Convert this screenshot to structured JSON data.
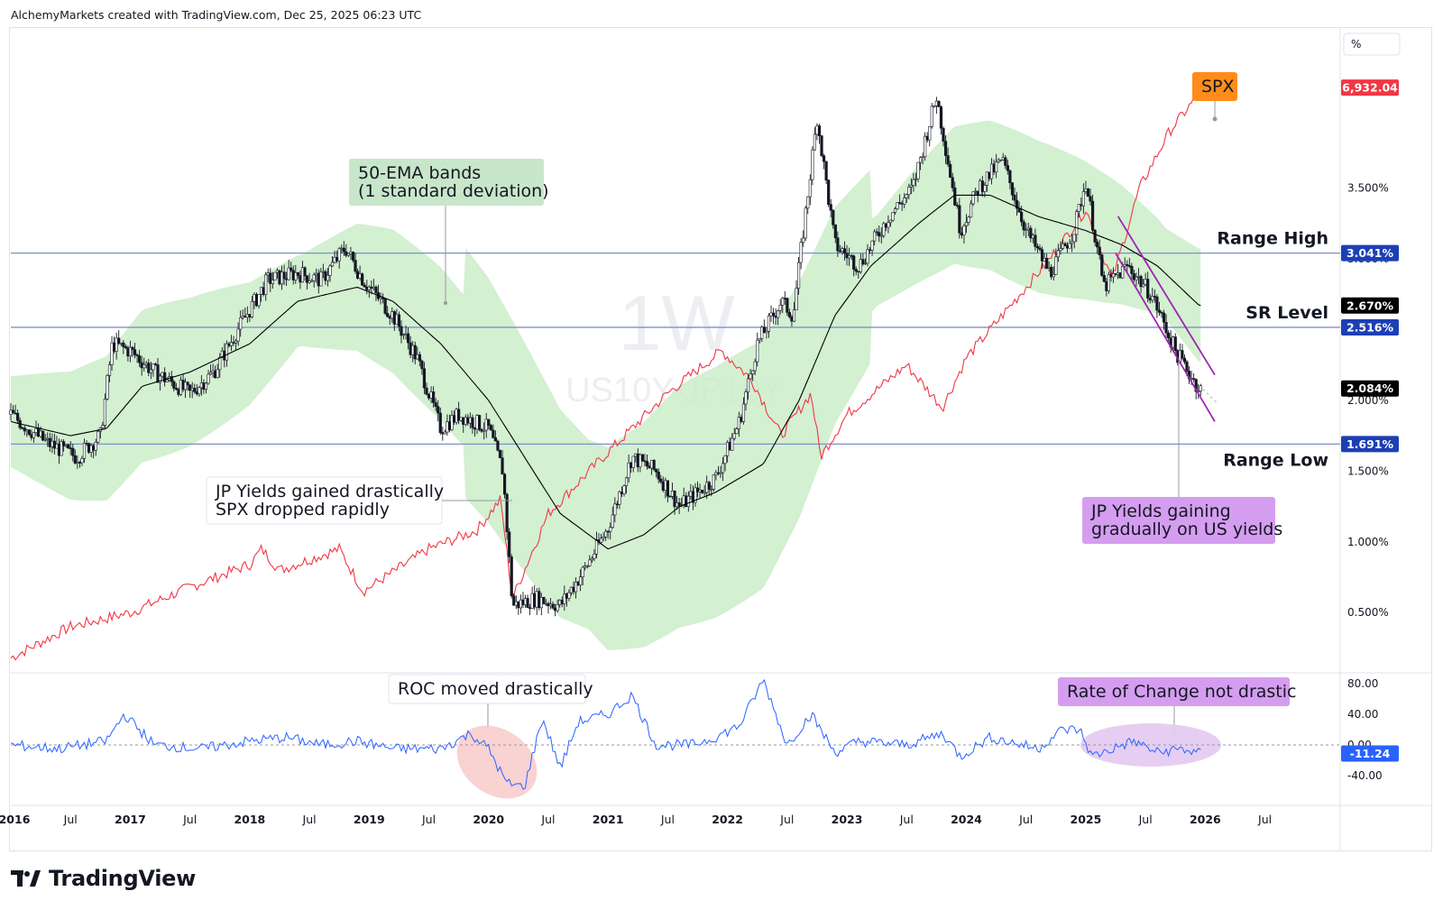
{
  "header": {
    "text": "AlchemyMarkets created with TradingView.com, Dec 25, 2025 06:23 UTC"
  },
  "brand": {
    "name": "TradingView"
  },
  "watermark": {
    "interval": "1W",
    "symbol": "US10Y-JP10Y"
  },
  "colors": {
    "up": "#131722",
    "down": "#131722",
    "ema": "#000000",
    "band": "#c8ecc6",
    "spx": "#f23645",
    "roc": "#2962ff",
    "channel": "#9c27b0",
    "hline": "#7e8fc8"
  },
  "chart_data": [
    {
      "type": "line",
      "title": "US10Y-JP10Y 1W with SPX overlay",
      "x_range": [
        "Jan 2016",
        "Feb 2027"
      ],
      "ylim": [
        0.1,
        4.6
      ],
      "y_unit": "%",
      "scale_badge": "%",
      "x_ticks": [
        "2016",
        "Jul",
        "2017",
        "Jul",
        "2018",
        "Jul",
        "2019",
        "Jul",
        "2020",
        "Jul",
        "2021",
        "Jul",
        "2022",
        "Jul",
        "2023",
        "Jul",
        "2024",
        "Jul",
        "2025",
        "Jul",
        "2026",
        "Jul"
      ],
      "y_ticks": [
        "3.500%",
        "3.000%",
        "2.500%",
        "2.000%",
        "1.500%",
        "1.000%",
        "0.500%"
      ],
      "levels": [
        {
          "name": "Range High",
          "value": 3.041,
          "badge": "3.041%"
        },
        {
          "name": "SR Level",
          "value": 2.516,
          "badge": "2.516%"
        },
        {
          "name": "Range Low",
          "value": 1.691,
          "badge": "1.691%"
        }
      ],
      "price_badges": [
        {
          "label": "6,932.04",
          "series": "SPX",
          "color": "#f23645"
        },
        {
          "label": "2.670%",
          "series": "50-EMA",
          "color": "#000000"
        },
        {
          "label": "2.084%",
          "series": "US10Y-JP10Y",
          "color": "#000000"
        }
      ],
      "series": [
        {
          "name": "US10Y-JP10Y",
          "kind": "candles",
          "anchors": [
            [
              2016.0,
              1.9
            ],
            [
              2016.3,
              1.7
            ],
            [
              2016.55,
              1.6
            ],
            [
              2016.75,
              1.75
            ],
            [
              2016.85,
              2.4
            ],
            [
              2017.0,
              2.35
            ],
            [
              2017.2,
              2.2
            ],
            [
              2017.5,
              2.05
            ],
            [
              2017.7,
              2.2
            ],
            [
              2017.9,
              2.5
            ],
            [
              2018.15,
              2.85
            ],
            [
              2018.4,
              2.9
            ],
            [
              2018.6,
              2.85
            ],
            [
              2018.8,
              3.08
            ],
            [
              2018.95,
              2.85
            ],
            [
              2019.2,
              2.6
            ],
            [
              2019.4,
              2.3
            ],
            [
              2019.6,
              1.8
            ],
            [
              2019.75,
              1.9
            ],
            [
              2020.0,
              1.8
            ],
            [
              2020.12,
              1.5
            ],
            [
              2020.2,
              0.55
            ],
            [
              2020.4,
              0.6
            ],
            [
              2020.6,
              0.55
            ],
            [
              2020.8,
              0.8
            ],
            [
              2021.0,
              1.1
            ],
            [
              2021.2,
              1.6
            ],
            [
              2021.4,
              1.5
            ],
            [
              2021.6,
              1.25
            ],
            [
              2021.9,
              1.45
            ],
            [
              2022.1,
              1.85
            ],
            [
              2022.25,
              2.4
            ],
            [
              2022.45,
              2.7
            ],
            [
              2022.55,
              2.6
            ],
            [
              2022.75,
              4.0
            ],
            [
              2022.9,
              3.1
            ],
            [
              2023.1,
              2.95
            ],
            [
              2023.35,
              3.3
            ],
            [
              2023.55,
              3.5
            ],
            [
              2023.75,
              4.15
            ],
            [
              2023.95,
              3.2
            ],
            [
              2024.1,
              3.5
            ],
            [
              2024.3,
              3.7
            ],
            [
              2024.5,
              3.2
            ],
            [
              2024.7,
              2.9
            ],
            [
              2024.9,
              3.2
            ],
            [
              2025.0,
              3.55
            ],
            [
              2025.15,
              2.8
            ],
            [
              2025.35,
              2.95
            ],
            [
              2025.55,
              2.75
            ],
            [
              2025.75,
              2.35
            ],
            [
              2025.95,
              2.08
            ]
          ]
        },
        {
          "name": "SPX",
          "kind": "line",
          "values_label": "6,932.04",
          "anchors": [
            [
              2016.0,
              0.18
            ],
            [
              2016.5,
              0.4
            ],
            [
              2017.0,
              0.5
            ],
            [
              2017.5,
              0.68
            ],
            [
              2018.0,
              0.84
            ],
            [
              2018.1,
              0.95
            ],
            [
              2018.25,
              0.8
            ],
            [
              2018.75,
              0.95
            ],
            [
              2018.95,
              0.65
            ],
            [
              2019.5,
              0.95
            ],
            [
              2019.9,
              1.08
            ],
            [
              2020.1,
              1.3
            ],
            [
              2020.2,
              0.6
            ],
            [
              2020.5,
              1.2
            ],
            [
              2020.9,
              1.55
            ],
            [
              2021.5,
              2.05
            ],
            [
              2021.95,
              2.35
            ],
            [
              2022.2,
              2.15
            ],
            [
              2022.45,
              1.75
            ],
            [
              2022.7,
              2.05
            ],
            [
              2022.78,
              1.6
            ],
            [
              2023.0,
              1.9
            ],
            [
              2023.5,
              2.25
            ],
            [
              2023.8,
              1.95
            ],
            [
              2024.0,
              2.3
            ],
            [
              2024.35,
              2.65
            ],
            [
              2024.7,
              3.0
            ],
            [
              2025.0,
              3.35
            ],
            [
              2025.22,
              2.85
            ],
            [
              2025.45,
              3.5
            ],
            [
              2025.7,
              3.9
            ],
            [
              2025.98,
              4.2
            ]
          ]
        },
        {
          "name": "50-EMA",
          "kind": "line",
          "value_label": "2.670%",
          "anchors": [
            [
              2016.0,
              1.85
            ],
            [
              2016.5,
              1.75
            ],
            [
              2016.8,
              1.8
            ],
            [
              2017.1,
              2.1
            ],
            [
              2017.5,
              2.2
            ],
            [
              2018.0,
              2.4
            ],
            [
              2018.4,
              2.7
            ],
            [
              2018.9,
              2.8
            ],
            [
              2019.2,
              2.7
            ],
            [
              2019.6,
              2.4
            ],
            [
              2020.0,
              2.0
            ],
            [
              2020.3,
              1.6
            ],
            [
              2020.6,
              1.2
            ],
            [
              2021.0,
              0.95
            ],
            [
              2021.3,
              1.05
            ],
            [
              2021.6,
              1.25
            ],
            [
              2021.9,
              1.35
            ],
            [
              2022.3,
              1.55
            ],
            [
              2022.6,
              2.0
            ],
            [
              2022.9,
              2.6
            ],
            [
              2023.2,
              2.95
            ],
            [
              2023.6,
              3.25
            ],
            [
              2023.9,
              3.45
            ],
            [
              2024.2,
              3.45
            ],
            [
              2024.6,
              3.3
            ],
            [
              2025.0,
              3.2
            ],
            [
              2025.3,
              3.1
            ],
            [
              2025.6,
              2.95
            ],
            [
              2025.95,
              2.67
            ]
          ]
        },
        {
          "name": "ROC",
          "kind": "line",
          "panel": "lower",
          "ylim": [
            -60,
            90
          ],
          "y_ticks": [
            "80.00",
            "40.00",
            "0.00",
            "-40.00"
          ],
          "last_label": "-11.24",
          "anchors": [
            [
              2016.0,
              0
            ],
            [
              2016.4,
              -5
            ],
            [
              2016.8,
              5
            ],
            [
              2016.95,
              40
            ],
            [
              2017.2,
              0
            ],
            [
              2017.6,
              -5
            ],
            [
              2018.0,
              5
            ],
            [
              2018.3,
              10
            ],
            [
              2018.6,
              0
            ],
            [
              2018.9,
              5
            ],
            [
              2019.2,
              -5
            ],
            [
              2019.6,
              -5
            ],
            [
              2019.85,
              15
            ],
            [
              2020.0,
              -5
            ],
            [
              2020.15,
              -50
            ],
            [
              2020.3,
              -55
            ],
            [
              2020.45,
              35
            ],
            [
              2020.6,
              -30
            ],
            [
              2020.75,
              30
            ],
            [
              2021.0,
              40
            ],
            [
              2021.2,
              65
            ],
            [
              2021.4,
              0
            ],
            [
              2021.7,
              0
            ],
            [
              2021.9,
              10
            ],
            [
              2022.1,
              25
            ],
            [
              2022.3,
              85
            ],
            [
              2022.5,
              0
            ],
            [
              2022.7,
              40
            ],
            [
              2022.9,
              -10
            ],
            [
              2023.1,
              5
            ],
            [
              2023.5,
              0
            ],
            [
              2023.8,
              15
            ],
            [
              2023.95,
              -15
            ],
            [
              2024.2,
              10
            ],
            [
              2024.6,
              -5
            ],
            [
              2024.8,
              20
            ],
            [
              2024.95,
              20
            ],
            [
              2025.05,
              -15
            ],
            [
              2025.4,
              5
            ],
            [
              2025.6,
              -10
            ],
            [
              2025.8,
              -5
            ],
            [
              2025.95,
              -11.24
            ]
          ]
        }
      ],
      "annotations": [
        {
          "text": "50-EMA bands\n(1 standard deviation)",
          "style": "green"
        },
        {
          "text": "JP Yields gained drastically\nSPX dropped rapidly",
          "style": "white"
        },
        {
          "text": "ROC moved drastically",
          "style": "white"
        },
        {
          "text": "Rate of Change not drastic",
          "style": "purple"
        },
        {
          "text": "JP Yields gaining\ngradually on US yields",
          "style": "purple"
        },
        {
          "text": "SPX",
          "style": "orange"
        }
      ]
    }
  ]
}
